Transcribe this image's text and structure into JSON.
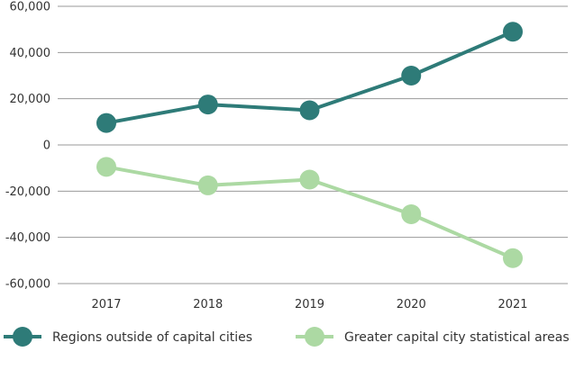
{
  "chart_data": {
    "type": "line",
    "categories": [
      "2017",
      "2018",
      "2019",
      "2020",
      "2021"
    ],
    "series": [
      {
        "name": "Regions outside of capital cities",
        "values": [
          9500,
          17500,
          15000,
          30000,
          49000
        ],
        "color": "#2e7b78"
      },
      {
        "name": "Greater capital city statistical areas",
        "values": [
          -9500,
          -17500,
          -15000,
          -30000,
          -49000
        ],
        "color": "#acd9a3"
      }
    ],
    "ylim": [
      -60000,
      60000
    ],
    "yticks": [
      60000,
      40000,
      20000,
      0,
      -20000,
      -40000,
      -60000
    ],
    "ytick_labels": [
      "60,000",
      "40,000",
      "20,000",
      "0",
      "-20,000",
      "-40,000",
      "-60,000"
    ],
    "grid": true,
    "legend_position": "bottom"
  }
}
